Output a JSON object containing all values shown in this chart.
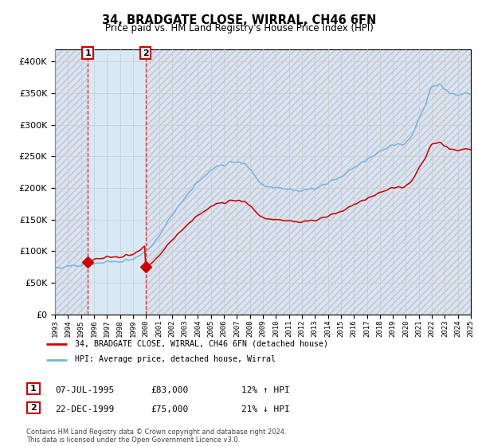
{
  "title": "34, BRADGATE CLOSE, WIRRAL, CH46 6FN",
  "subtitle": "Price paid vs. HM Land Registry's House Price Index (HPI)",
  "legend_line1": "34, BRADGATE CLOSE, WIRRAL, CH46 6FN (detached house)",
  "legend_line2": "HPI: Average price, detached house, Wirral",
  "transaction1_date": "07-JUL-1995",
  "transaction1_price": 83000,
  "transaction1_label": "12% ↑ HPI",
  "transaction2_date": "22-DEC-1999",
  "transaction2_price": 75000,
  "transaction2_label": "21% ↓ HPI",
  "footnote": "Contains HM Land Registry data © Crown copyright and database right 2024.\nThis data is licensed under the Open Government Licence v3.0.",
  "hpi_color": "#7ab4dc",
  "price_color": "#cc0000",
  "marker_color": "#cc0000",
  "transaction_bg_color": "#d8e8f5",
  "hatch_bg_color": "#dde4ee",
  "dashed_line_color": "#dd2222",
  "grid_color": "#cccccc",
  "ylim_max": 420000,
  "ytick_step": 50000,
  "xstart_year": 1993,
  "xend_year": 2025,
  "transaction1_year": 1995.52,
  "transaction2_year": 1999.97
}
